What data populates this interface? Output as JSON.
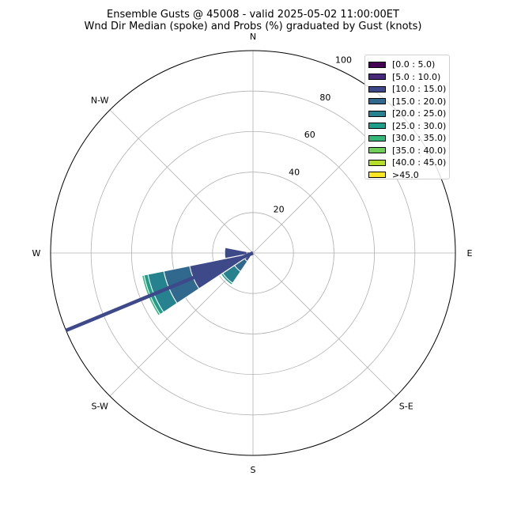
{
  "title": {
    "line1": "Ensemble Gusts @ 45008 - valid 2025-05-02 11:00:00ET",
    "line2": "Wnd Dir Median (spoke) and Probs (%) graduated by Gust (knots)"
  },
  "chart_data": {
    "type": "windrose",
    "directions": [
      "N",
      "N-W",
      "W",
      "S-W",
      "S",
      "S-E",
      "E"
    ],
    "direction_labels": [
      {
        "label": "N",
        "angle_deg": 0
      },
      {
        "label": "E",
        "angle_deg": 90
      },
      {
        "label": "S-E",
        "angle_deg": 135
      },
      {
        "label": "S",
        "angle_deg": 180
      },
      {
        "label": "S-W",
        "angle_deg": 225
      },
      {
        "label": "W",
        "angle_deg": 270
      },
      {
        "label": "N-W",
        "angle_deg": 315
      }
    ],
    "radial_ticks": [
      20,
      40,
      60,
      80,
      100
    ],
    "rmax": 100,
    "grid": true,
    "legend_placement": "top-right",
    "bins": [
      "[0.0 : 5.0)",
      "[5.0 : 10.0)",
      "[10.0 : 15.0)",
      "[15.0 : 20.0)",
      "[20.0 : 25.0)",
      "[25.0 : 30.0)",
      "[30.0 : 35.0)",
      "[35.0 : 40.0)",
      "[40.0 : 45.0)",
      ">45.0"
    ],
    "bin_colors": [
      "#440154",
      "#482878",
      "#3e4989",
      "#31688e",
      "#26828e",
      "#1f9e89",
      "#35b779",
      "#6ece58",
      "#b5de2b",
      "#fde725"
    ],
    "wedges": [
      {
        "dir_deg": 270,
        "cumulative": [
          0,
          3,
          14,
          14,
          14,
          14,
          14,
          14,
          14,
          14
        ]
      },
      {
        "dir_deg": 225,
        "cumulative": [
          0,
          2,
          5,
          11,
          18,
          19,
          19,
          19,
          19,
          19
        ]
      },
      {
        "dir_deg": 247.5,
        "cumulative": [
          0,
          3,
          32,
          45,
          53,
          55,
          56,
          56,
          56,
          56
        ]
      }
    ],
    "spoke": {
      "dir_deg": 247.5,
      "value": 100
    }
  }
}
